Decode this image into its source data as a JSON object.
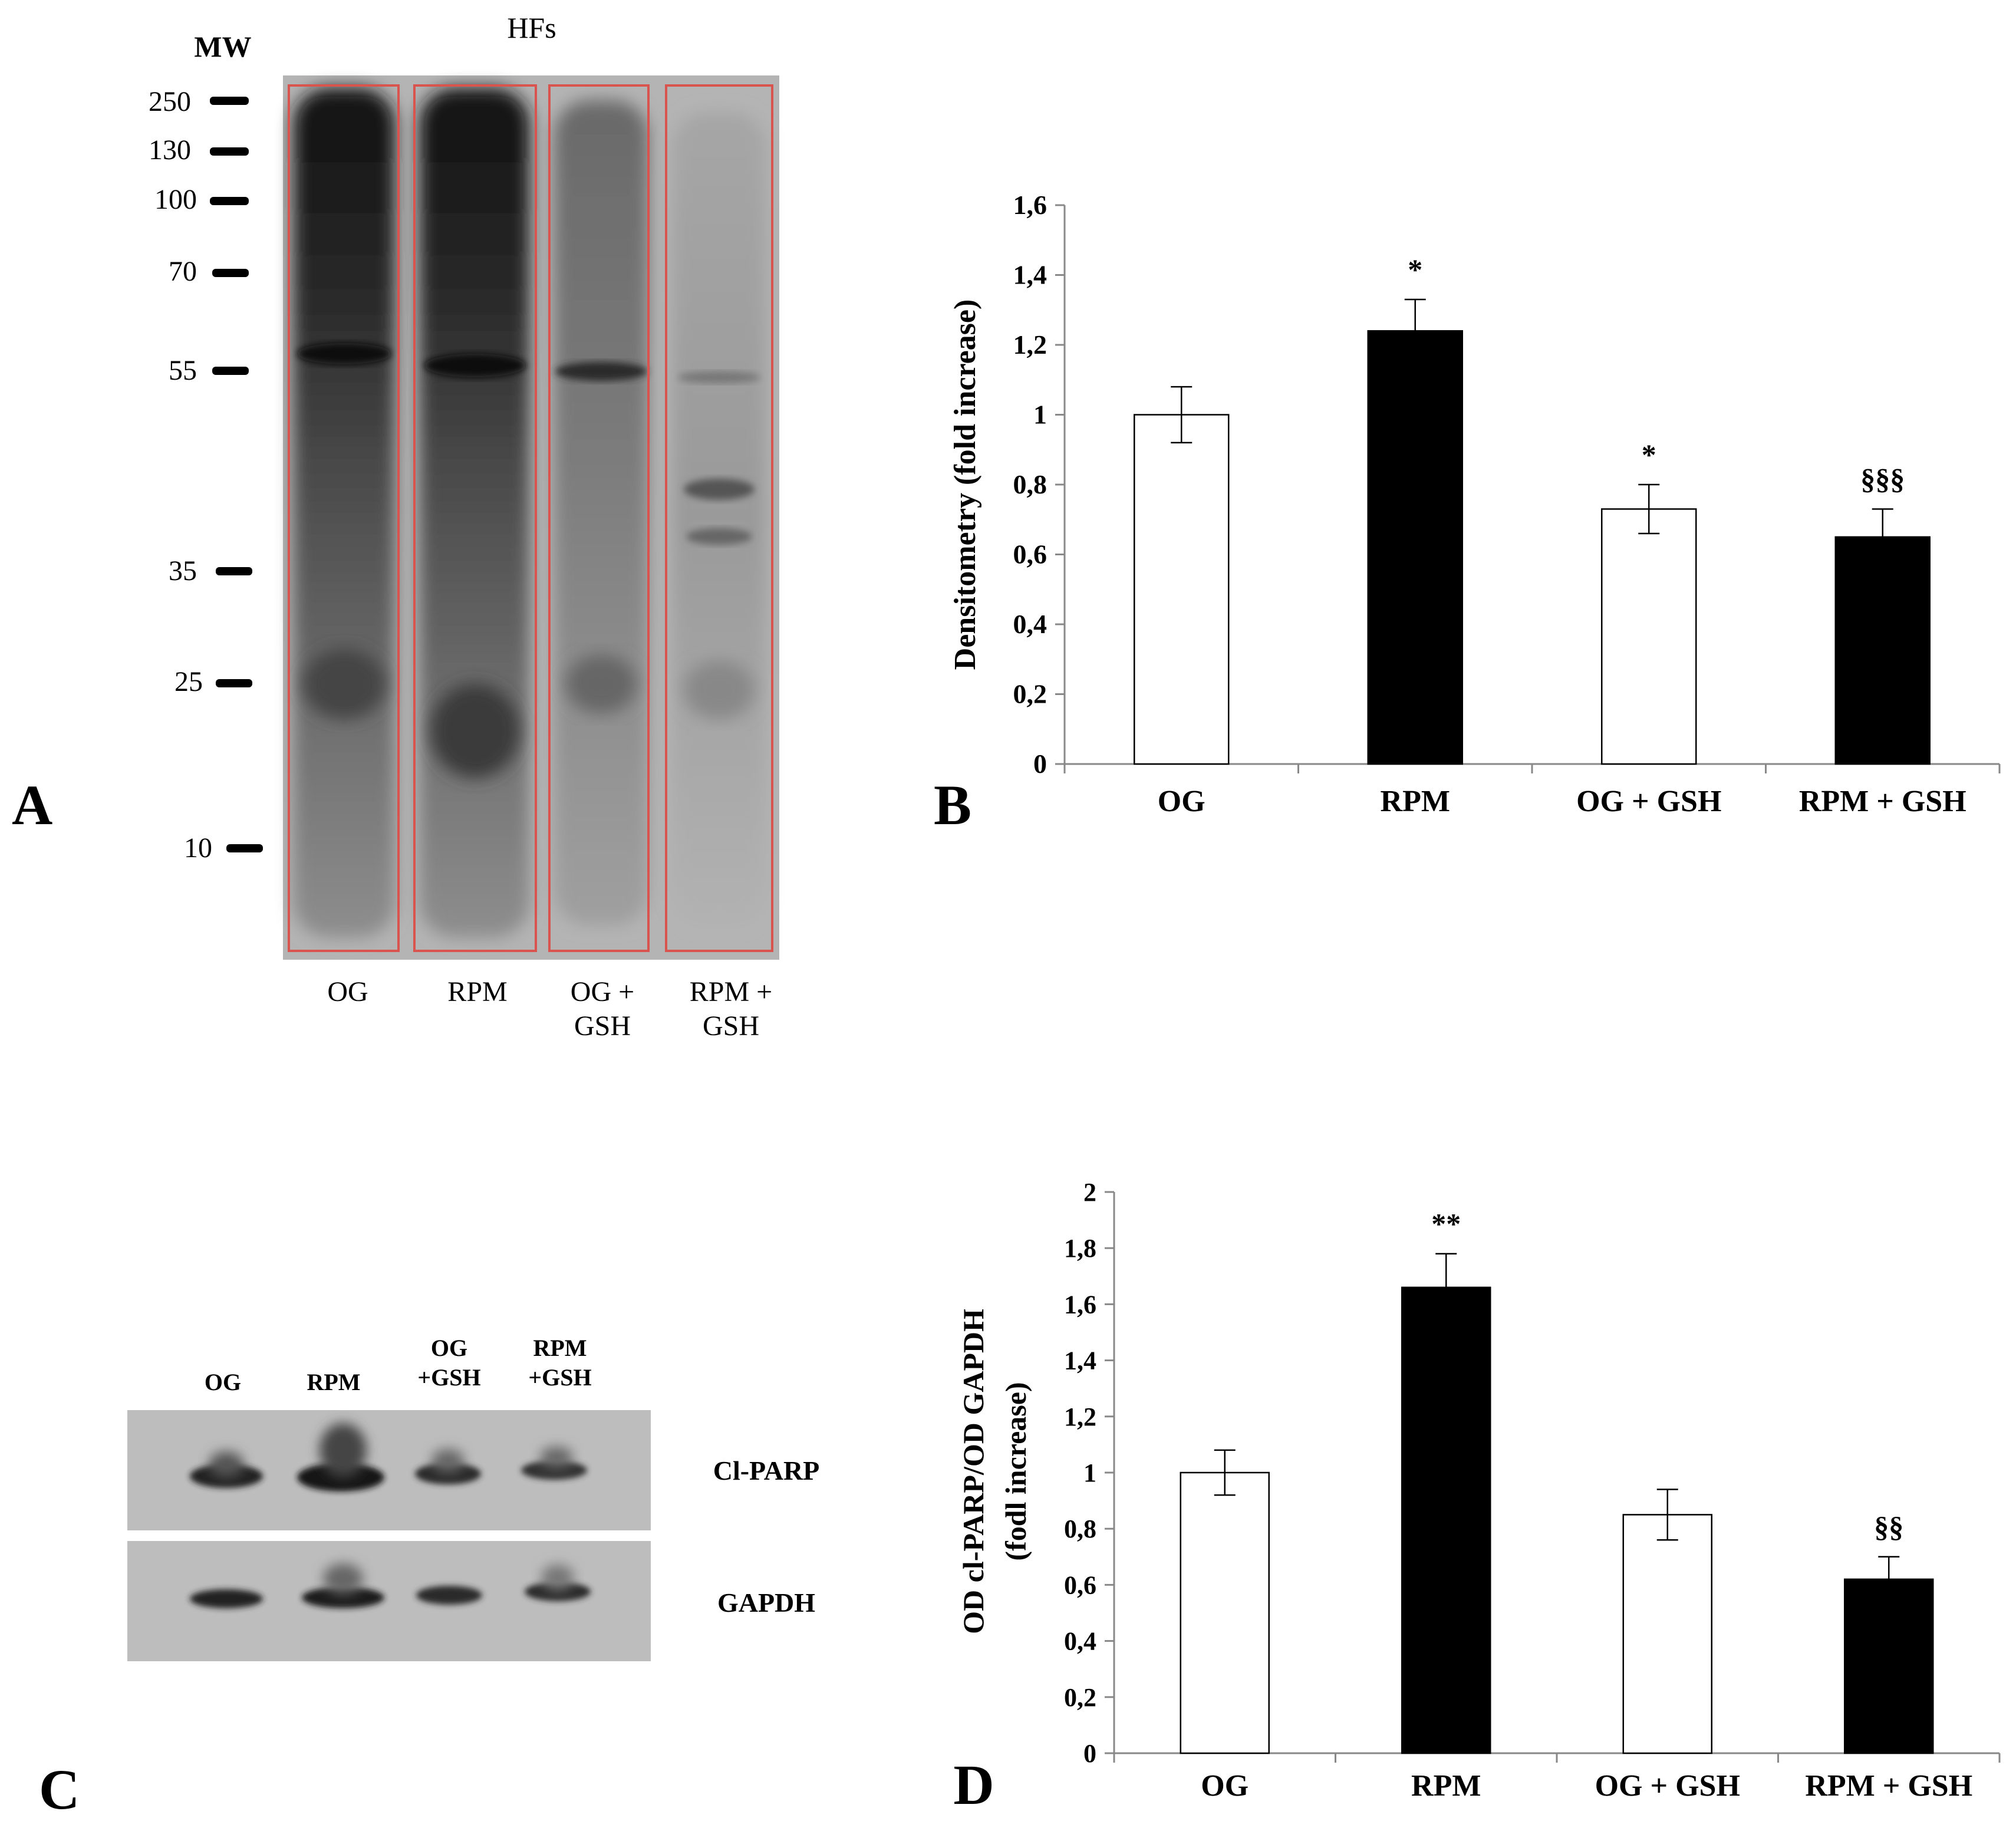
{
  "panel_a": {
    "letter": "A",
    "mw_label": "MW",
    "hfs_label": "HFs",
    "markers": [
      "250",
      "130",
      "100",
      "70",
      "55",
      "35",
      "25",
      "10"
    ],
    "lanes": [
      {
        "line1": "OG",
        "line2": ""
      },
      {
        "line1": "RPM",
        "line2": ""
      },
      {
        "line1": "OG +",
        "line2": "GSH"
      },
      {
        "line1": "RPM +",
        "line2": "GSH"
      }
    ],
    "box_color": "#d9534f"
  },
  "panel_c": {
    "letter": "C",
    "lanes": [
      {
        "line1": "OG",
        "line2": ""
      },
      {
        "line1": "RPM",
        "line2": ""
      },
      {
        "line1": "OG",
        "line2": "+GSH"
      },
      {
        "line1": "RPM",
        "line2": "+GSH"
      }
    ],
    "blot_labels": [
      "Cl-PARP",
      "GAPDH"
    ]
  },
  "chart_data": [
    {
      "panel": "B",
      "type": "bar",
      "categories": [
        "OG",
        "RPM",
        "OG + GSH",
        "RPM + GSH"
      ],
      "values": [
        1.0,
        1.24,
        0.73,
        0.65
      ],
      "errors": [
        0.08,
        0.09,
        0.07,
        0.08
      ],
      "bar_colors": [
        "#ffffff",
        "#000000",
        "#ffffff",
        "#000000"
      ],
      "annotations": [
        "",
        "*",
        "*",
        "§§§"
      ],
      "ylabel": "Densitometry (fold increase)",
      "ylim": [
        0,
        1.6
      ],
      "yticks": [
        "0",
        "0,2",
        "0,4",
        "0,6",
        "0,8",
        "1",
        "1,2",
        "1,4",
        "1,6"
      ],
      "grid": false
    },
    {
      "panel": "D",
      "type": "bar",
      "categories": [
        "OG",
        "RPM",
        "OG + GSH",
        "RPM + GSH"
      ],
      "values": [
        1.0,
        1.66,
        0.85,
        0.62
      ],
      "errors": [
        0.08,
        0.12,
        0.09,
        0.08
      ],
      "bar_colors": [
        "#ffffff",
        "#000000",
        "#ffffff",
        "#000000"
      ],
      "annotations": [
        "",
        "**",
        "",
        "§§"
      ],
      "ylabel_line1": "OD cl-PARP/OD GAPDH",
      "ylabel_line2": "(fodl increase)",
      "ylim": [
        0,
        2
      ],
      "yticks": [
        "0",
        "0,2",
        "0,4",
        "0,6",
        "0,8",
        "1",
        "1,2",
        "1,4",
        "1,6",
        "1,8",
        "2"
      ],
      "grid": false
    }
  ]
}
